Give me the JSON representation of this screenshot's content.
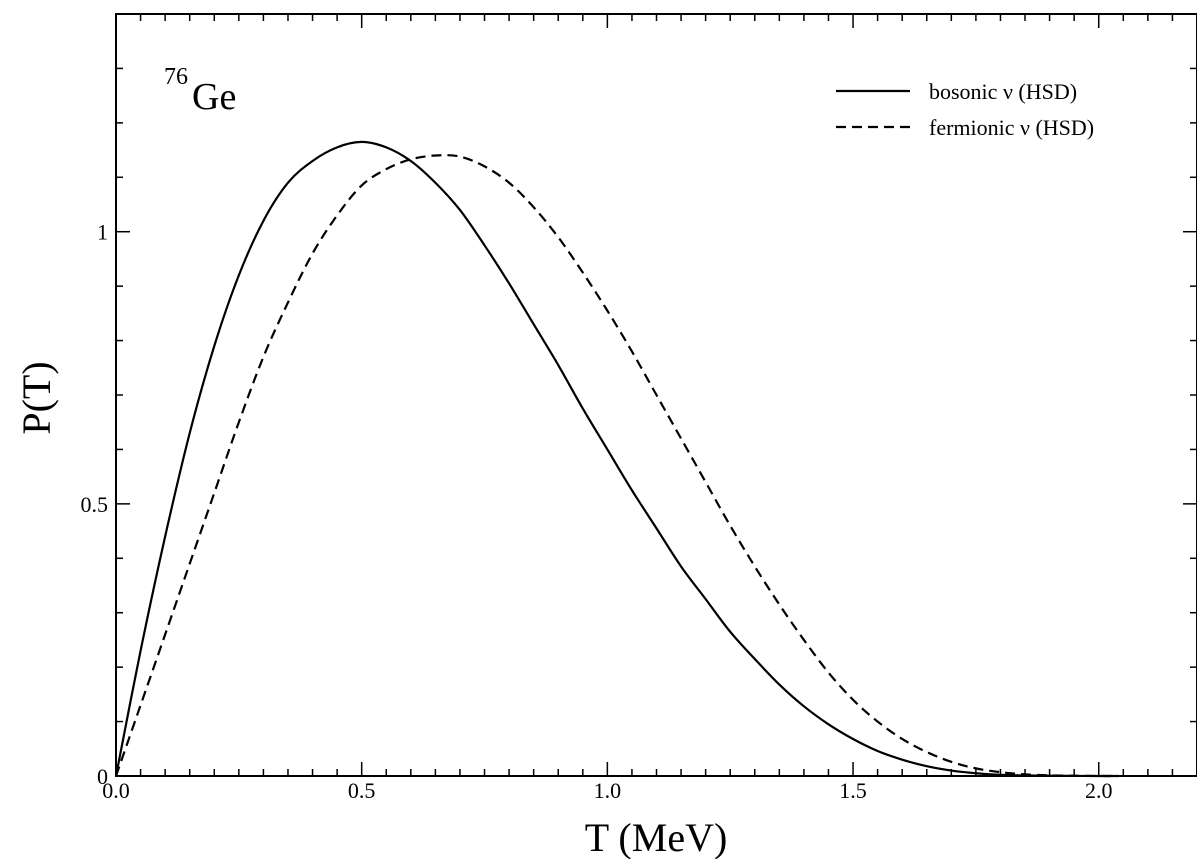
{
  "chart_data": {
    "type": "line",
    "xlabel": "T (MeV)",
    "ylabel": "P(T)",
    "xlim": [
      0,
      2.2
    ],
    "ylim": [
      0,
      1.4
    ],
    "x_ticks": [
      0.0,
      0.5,
      1.0,
      1.5,
      2.0
    ],
    "x_tick_labels": [
      "0.0",
      "0.5",
      "1.0",
      "1.5",
      "2.0"
    ],
    "y_ticks": [
      0,
      0.5,
      1
    ],
    "y_tick_labels": [
      "0",
      "0.5",
      "1"
    ],
    "annotation": {
      "mass_number": "76",
      "element": "Ge"
    },
    "legend_position": "top-right",
    "series": [
      {
        "name": "bosonic ν (HSD)",
        "style": "solid",
        "color": "#000000",
        "x": [
          0.0,
          0.05,
          0.1,
          0.15,
          0.2,
          0.25,
          0.3,
          0.35,
          0.4,
          0.45,
          0.5,
          0.55,
          0.6,
          0.65,
          0.7,
          0.75,
          0.8,
          0.85,
          0.9,
          0.95,
          1.0,
          1.05,
          1.1,
          1.15,
          1.2,
          1.25,
          1.3,
          1.35,
          1.4,
          1.45,
          1.5,
          1.55,
          1.6,
          1.65,
          1.7,
          1.75,
          1.8,
          1.85,
          1.9,
          1.95,
          2.0,
          2.039
        ],
        "y": [
          0.0,
          0.23,
          0.44,
          0.63,
          0.79,
          0.92,
          1.02,
          1.09,
          1.13,
          1.155,
          1.165,
          1.155,
          1.13,
          1.09,
          1.04,
          0.975,
          0.905,
          0.83,
          0.755,
          0.675,
          0.6,
          0.525,
          0.455,
          0.385,
          0.325,
          0.265,
          0.215,
          0.168,
          0.128,
          0.095,
          0.068,
          0.046,
          0.03,
          0.018,
          0.01,
          0.005,
          0.002,
          0.001,
          0.0005,
          0.0002,
          0.0,
          0.0
        ]
      },
      {
        "name": "fermionic ν (HSD)",
        "style": "dashed",
        "color": "#000000",
        "x": [
          0.0,
          0.05,
          0.1,
          0.15,
          0.2,
          0.25,
          0.3,
          0.35,
          0.4,
          0.45,
          0.5,
          0.55,
          0.6,
          0.65,
          0.7,
          0.75,
          0.8,
          0.85,
          0.9,
          0.95,
          1.0,
          1.05,
          1.1,
          1.15,
          1.2,
          1.25,
          1.3,
          1.35,
          1.4,
          1.45,
          1.5,
          1.55,
          1.6,
          1.65,
          1.7,
          1.75,
          1.8,
          1.85,
          1.9,
          1.95,
          2.0,
          2.039
        ],
        "y": [
          0.0,
          0.13,
          0.26,
          0.39,
          0.52,
          0.65,
          0.77,
          0.87,
          0.96,
          1.03,
          1.085,
          1.115,
          1.133,
          1.14,
          1.138,
          1.12,
          1.09,
          1.045,
          0.99,
          0.925,
          0.855,
          0.78,
          0.7,
          0.62,
          0.54,
          0.46,
          0.385,
          0.315,
          0.25,
          0.19,
          0.14,
          0.1,
          0.068,
          0.044,
          0.026,
          0.014,
          0.007,
          0.003,
          0.0012,
          0.0004,
          0.0001,
          0.0
        ]
      }
    ]
  }
}
